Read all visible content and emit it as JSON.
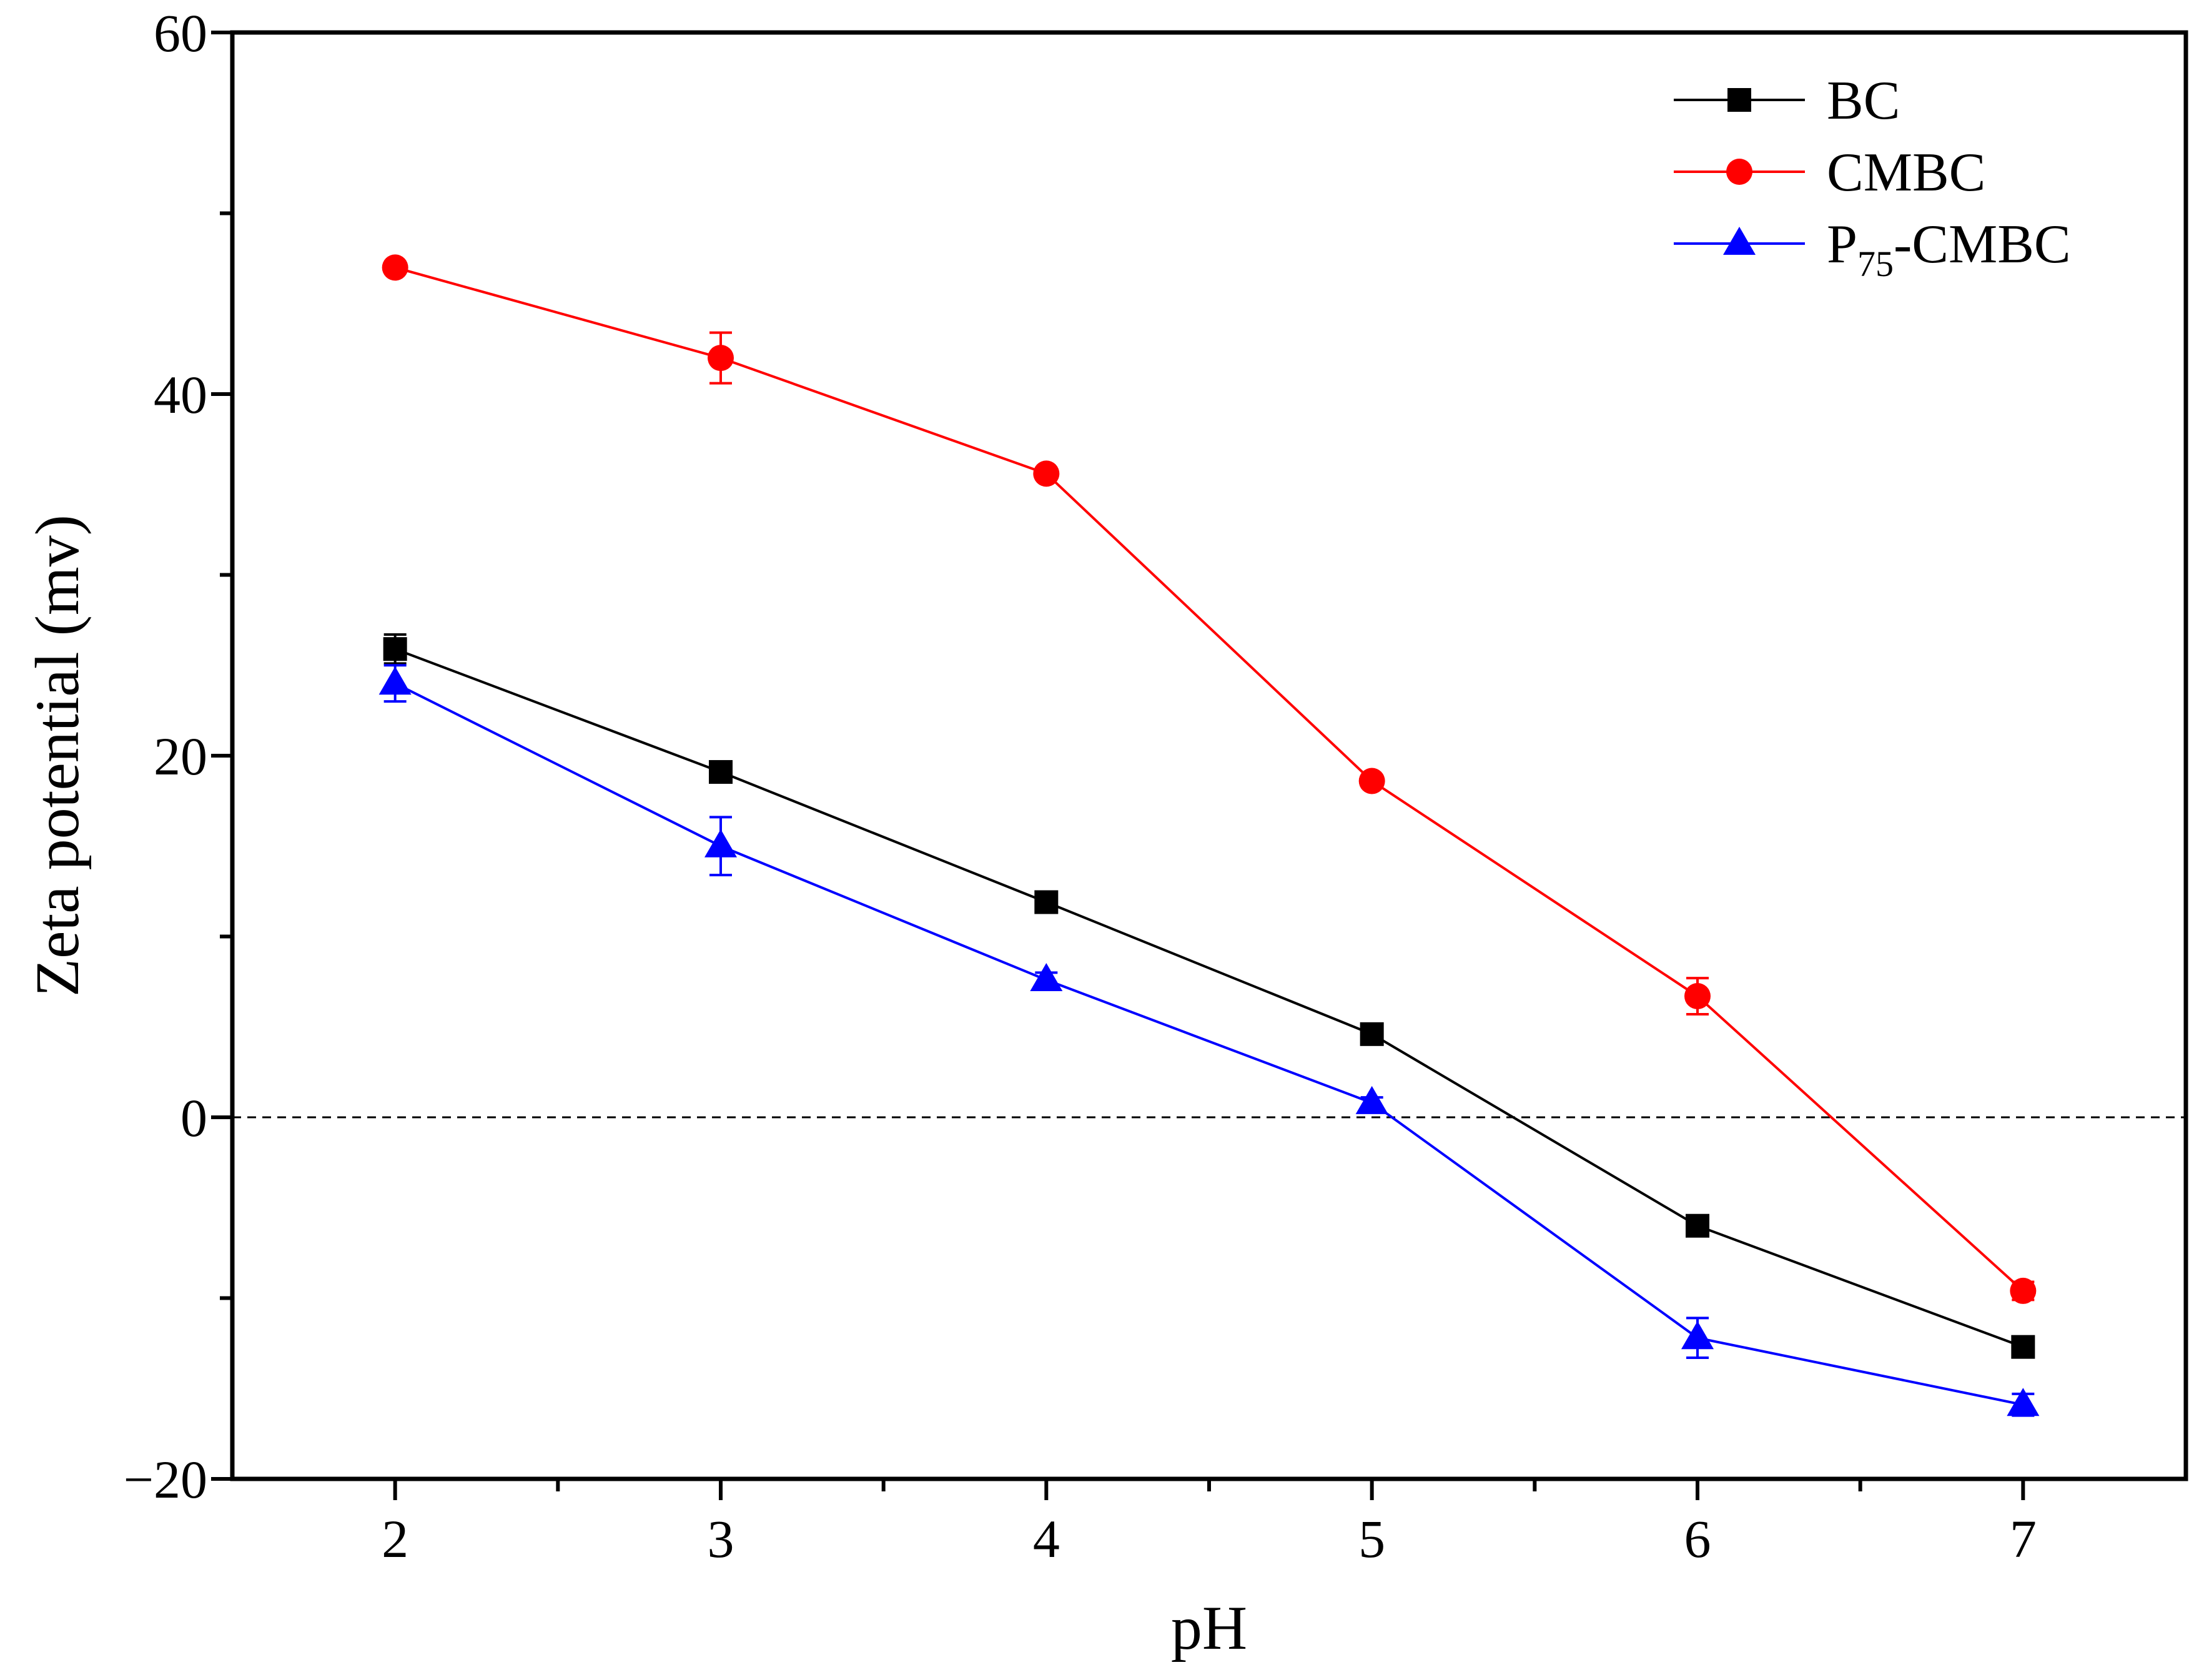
{
  "chart_data": {
    "type": "line",
    "title": "",
    "xlabel": "pH",
    "ylabel": "Zeta potential (mv)",
    "xlim": [
      1.5,
      7.5
    ],
    "ylim": [
      -20,
      60
    ],
    "x_ticks": [
      2,
      3,
      4,
      5,
      6,
      7
    ],
    "x_minor_ticks": [
      2.5,
      3.5,
      4.5,
      5.5,
      6.5
    ],
    "y_ticks": [
      -20,
      0,
      20,
      40,
      60
    ],
    "y_tick_labels": [
      "−20",
      "0",
      "20",
      "40",
      "60"
    ],
    "y_minor_ticks": [
      -10,
      10,
      30,
      50
    ],
    "reference_line": {
      "y": 0,
      "style": "dashed"
    },
    "legend_position": "top-right",
    "x": [
      2,
      3,
      4,
      5,
      6,
      7
    ],
    "series": [
      {
        "name": "BC",
        "label_main": "BC",
        "label_sub": "",
        "label_tail": "",
        "color": "#000000",
        "marker": "square",
        "values": [
          25.9,
          19.1,
          11.9,
          4.6,
          -6.0,
          -12.7
        ],
        "errors": [
          0.8,
          0.4,
          0.4,
          0.4,
          0.4,
          0.4
        ]
      },
      {
        "name": "CMBC",
        "label_main": "CMBC",
        "label_sub": "",
        "label_tail": "",
        "color": "#ff0000",
        "marker": "circle",
        "values": [
          47.0,
          42.0,
          35.6,
          18.6,
          6.7,
          -9.6
        ],
        "errors": [
          0.3,
          1.4,
          0.3,
          0.3,
          1.0,
          0.5
        ]
      },
      {
        "name": "P75-CMBC",
        "label_main": "P",
        "label_sub": "75",
        "label_tail": "-CMBC",
        "color": "#0000ff",
        "marker": "triangle",
        "values": [
          24.0,
          15.0,
          7.6,
          0.8,
          -12.2,
          -15.9
        ],
        "errors": [
          1.0,
          1.6,
          0.4,
          0.3,
          1.1,
          0.6
        ]
      }
    ]
  }
}
